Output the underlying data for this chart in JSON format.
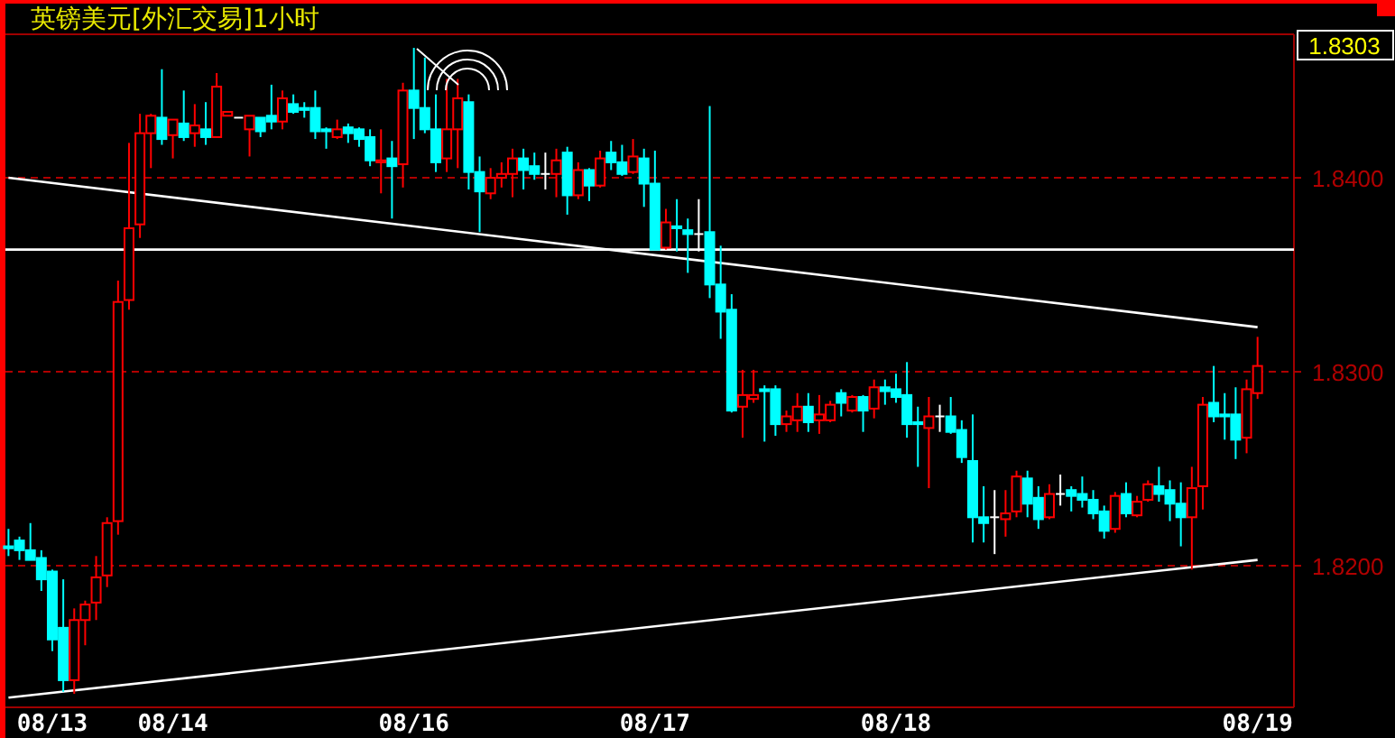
{
  "chart_data": {
    "type": "candlestick",
    "title": "英镑美元[外汇交易]1小时",
    "categories": [
      null,
      null,
      null,
      null,
      "08/13",
      null,
      null,
      null,
      null,
      null,
      null,
      null,
      null,
      null,
      null,
      "08/14",
      null,
      null,
      null,
      null,
      null,
      null,
      null,
      null,
      null,
      null,
      null,
      null,
      null,
      null,
      null,
      null,
      null,
      null,
      null,
      null,
      null,
      "08/16",
      null,
      null,
      null,
      null,
      null,
      null,
      null,
      null,
      null,
      null,
      null,
      null,
      null,
      null,
      null,
      null,
      null,
      null,
      null,
      null,
      null,
      "08/17",
      null,
      null,
      null,
      null,
      null,
      null,
      null,
      null,
      null,
      null,
      null,
      null,
      null,
      null,
      null,
      null,
      null,
      null,
      null,
      null,
      null,
      "08/18",
      null,
      null,
      null,
      null,
      null,
      null,
      null,
      null,
      null,
      null,
      null,
      null,
      null,
      null,
      null,
      null,
      null,
      null,
      null,
      null,
      null,
      null,
      null,
      null,
      null,
      null,
      null,
      null,
      null,
      null,
      null,
      null,
      "08/19"
    ],
    "ohlc": [
      [
        1.821,
        1.8219,
        1.8205,
        1.8209
      ],
      [
        1.8213,
        1.8215,
        1.8203,
        1.8208
      ],
      [
        1.8208,
        1.8222,
        1.8203,
        1.8203
      ],
      [
        1.8204,
        1.8208,
        1.8187,
        1.8193
      ],
      [
        1.8197,
        1.8198,
        1.8156,
        1.8162
      ],
      [
        1.8168,
        1.8193,
        1.8135,
        1.8141
      ],
      [
        1.8141,
        1.8178,
        1.8134,
        1.8172
      ],
      [
        1.8172,
        1.8182,
        1.8159,
        1.818
      ],
      [
        1.8181,
        1.8205,
        1.8172,
        1.8194
      ],
      [
        1.8195,
        1.8225,
        1.8189,
        1.8222
      ],
      [
        1.8223,
        1.8347,
        1.8216,
        1.8336
      ],
      [
        1.8337,
        1.8418,
        1.8332,
        1.8374
      ],
      [
        1.8376,
        1.8433,
        1.8369,
        1.8423
      ],
      [
        1.8423,
        1.8433,
        1.8405,
        1.8432
      ],
      [
        1.8431,
        1.8456,
        1.8417,
        1.842
      ],
      [
        1.8422,
        1.843,
        1.841,
        1.843
      ],
      [
        1.8428,
        1.8445,
        1.8419,
        1.8421
      ],
      [
        1.8423,
        1.8438,
        1.8416,
        1.8427
      ],
      [
        1.8425,
        1.8439,
        1.8417,
        1.8421
      ],
      [
        1.8421,
        1.8454,
        1.8421,
        1.8447
      ],
      [
        1.8432,
        1.8434,
        1.8432,
        1.8434
      ],
      [
        1.8431,
        1.8431,
        1.8431,
        1.8431
      ],
      [
        1.8425,
        1.8432,
        1.8411,
        1.8432
      ],
      [
        1.8431,
        1.8431,
        1.8421,
        1.8424
      ],
      [
        1.8432,
        1.8448,
        1.8425,
        1.8429
      ],
      [
        1.8429,
        1.8445,
        1.8425,
        1.8441
      ],
      [
        1.8438,
        1.8443,
        1.8433,
        1.8434
      ],
      [
        1.8436,
        1.8439,
        1.8431,
        1.8435
      ],
      [
        1.8436,
        1.8445,
        1.842,
        1.8424
      ],
      [
        1.8425,
        1.8426,
        1.8415,
        1.8424
      ],
      [
        1.8421,
        1.843,
        1.842,
        1.8425
      ],
      [
        1.8426,
        1.8428,
        1.8418,
        1.8423
      ],
      [
        1.8425,
        1.8426,
        1.8416,
        1.842
      ],
      [
        1.8421,
        1.8425,
        1.8406,
        1.8409
      ],
      [
        1.8408,
        1.8425,
        1.8392,
        1.8409
      ],
      [
        1.841,
        1.8419,
        1.8379,
        1.8406
      ],
      [
        1.8407,
        1.8449,
        1.8395,
        1.8445
      ],
      [
        1.8445,
        1.8467,
        1.842,
        1.8436
      ],
      [
        1.8436,
        1.8462,
        1.8423,
        1.8425
      ],
      [
        1.8425,
        1.8443,
        1.8403,
        1.8408
      ],
      [
        1.841,
        1.8451,
        1.8403,
        1.8425
      ],
      [
        1.8425,
        1.8451,
        1.8405,
        1.8441
      ],
      [
        1.8439,
        1.8443,
        1.8394,
        1.8403
      ],
      [
        1.8403,
        1.8411,
        1.8372,
        1.8393
      ],
      [
        1.8392,
        1.8405,
        1.8389,
        1.84
      ],
      [
        1.84,
        1.8408,
        1.8395,
        1.8402
      ],
      [
        1.8402,
        1.8415,
        1.839,
        1.841
      ],
      [
        1.841,
        1.8415,
        1.8394,
        1.8404
      ],
      [
        1.8406,
        1.8413,
        1.8399,
        1.8402
      ],
      [
        1.8402,
        1.8413,
        1.8394,
        1.8402
      ],
      [
        1.8402,
        1.8415,
        1.839,
        1.8409
      ],
      [
        1.8413,
        1.8416,
        1.8381,
        1.8391
      ],
      [
        1.8391,
        1.8408,
        1.8389,
        1.8404
      ],
      [
        1.8404,
        1.8405,
        1.8388,
        1.8396
      ],
      [
        1.8396,
        1.8414,
        1.8395,
        1.841
      ],
      [
        1.8413,
        1.8419,
        1.8404,
        1.8408
      ],
      [
        1.8408,
        1.8417,
        1.8401,
        1.8402
      ],
      [
        1.8403,
        1.842,
        1.8402,
        1.8411
      ],
      [
        1.841,
        1.8415,
        1.8385,
        1.8397
      ],
      [
        1.8397,
        1.8414,
        1.8363,
        1.8363
      ],
      [
        1.8364,
        1.8384,
        1.8363,
        1.8377
      ],
      [
        1.8375,
        1.8389,
        1.8362,
        1.8374
      ],
      [
        1.8373,
        1.8379,
        1.8351,
        1.8371
      ],
      [
        1.8371,
        1.8389,
        1.8362,
        1.8371
      ],
      [
        1.8372,
        1.8437,
        1.8338,
        1.8345
      ],
      [
        1.8345,
        1.8365,
        1.8317,
        1.8331
      ],
      [
        1.8332,
        1.834,
        1.8279,
        1.828
      ],
      [
        1.8282,
        1.8301,
        1.8266,
        1.8288
      ],
      [
        1.8286,
        1.8301,
        1.8284,
        1.8288
      ],
      [
        1.8291,
        1.8293,
        1.8264,
        1.829
      ],
      [
        1.8291,
        1.8293,
        1.8267,
        1.8273
      ],
      [
        1.8273,
        1.828,
        1.8269,
        1.8277
      ],
      [
        1.8275,
        1.8289,
        1.8269,
        1.8282
      ],
      [
        1.8282,
        1.8289,
        1.8269,
        1.8274
      ],
      [
        1.8275,
        1.8288,
        1.8268,
        1.8278
      ],
      [
        1.8275,
        1.8285,
        1.8274,
        1.8283
      ],
      [
        1.8289,
        1.8291,
        1.8277,
        1.8284
      ],
      [
        1.828,
        1.8288,
        1.8279,
        1.8287
      ],
      [
        1.8287,
        1.8288,
        1.8269,
        1.828
      ],
      [
        1.8281,
        1.8296,
        1.8276,
        1.8292
      ],
      [
        1.8292,
        1.8296,
        1.8283,
        1.829
      ],
      [
        1.8291,
        1.8299,
        1.8284,
        1.8287
      ],
      [
        1.8288,
        1.8305,
        1.8266,
        1.8273
      ],
      [
        1.8274,
        1.8282,
        1.8251,
        1.8273
      ],
      [
        1.8271,
        1.8287,
        1.824,
        1.8277
      ],
      [
        1.8277,
        1.8283,
        1.8269,
        1.8277
      ],
      [
        1.8277,
        1.8287,
        1.8268,
        1.8269
      ],
      [
        1.827,
        1.8275,
        1.8253,
        1.8256
      ],
      [
        1.8254,
        1.8278,
        1.8212,
        1.8225
      ],
      [
        1.8225,
        1.8241,
        1.8212,
        1.8222
      ],
      [
        1.8225,
        1.8239,
        1.8206,
        1.8225
      ],
      [
        1.8224,
        1.8239,
        1.8215,
        1.8227
      ],
      [
        1.8228,
        1.8249,
        1.8225,
        1.8246
      ],
      [
        1.8245,
        1.8249,
        1.8225,
        1.8232
      ],
      [
        1.8235,
        1.8241,
        1.8219,
        1.8224
      ],
      [
        1.8225,
        1.8242,
        1.8224,
        1.8237
      ],
      [
        1.8237,
        1.8247,
        1.8231,
        1.8237
      ],
      [
        1.8239,
        1.8241,
        1.8228,
        1.8236
      ],
      [
        1.8237,
        1.8246,
        1.823,
        1.8234
      ],
      [
        1.8234,
        1.8239,
        1.8224,
        1.8227
      ],
      [
        1.8228,
        1.8231,
        1.8214,
        1.8218
      ],
      [
        1.8219,
        1.8238,
        1.8217,
        1.8236
      ],
      [
        1.8237,
        1.8243,
        1.8225,
        1.8227
      ],
      [
        1.8226,
        1.8236,
        1.8225,
        1.8233
      ],
      [
        1.8234,
        1.8244,
        1.8233,
        1.8242
      ],
      [
        1.8241,
        1.8251,
        1.8233,
        1.8237
      ],
      [
        1.8239,
        1.8244,
        1.8223,
        1.8232
      ],
      [
        1.8232,
        1.8243,
        1.821,
        1.8225
      ],
      [
        1.8225,
        1.8251,
        1.8198,
        1.824
      ],
      [
        1.8241,
        1.8287,
        1.8229,
        1.8283
      ],
      [
        1.8284,
        1.8303,
        1.8274,
        1.8277
      ],
      [
        1.8278,
        1.8289,
        1.8265,
        1.8277
      ],
      [
        1.8278,
        1.8292,
        1.8255,
        1.8265
      ],
      [
        1.8266,
        1.8296,
        1.8258,
        1.8291
      ],
      [
        1.8289,
        1.8318,
        1.8286,
        1.8303
      ]
    ],
    "colors": [
      "#00ffff",
      "#00ffff",
      "#00ffff",
      "#00ffff",
      "#00ffff",
      "#00ffff",
      "#ff0000",
      "#ff0000",
      "#ff0000",
      "#ff0000",
      "#ff0000",
      "#ff0000",
      "#ff0000",
      "#ff0000",
      "#00ffff",
      "#ff0000",
      "#00ffff",
      "#ff0000",
      "#00ffff",
      "#ff0000",
      "#ff0000",
      "#ffffff",
      "#ff0000",
      "#00ffff",
      "#00ffff",
      "#ff0000",
      "#00ffff",
      "#00ffff",
      "#00ffff",
      "#00ffff",
      "#ff0000",
      "#00ffff",
      "#00ffff",
      "#00ffff",
      "#ff0000",
      "#00ffff",
      "#ff0000",
      "#00ffff",
      "#00ffff",
      "#00ffff",
      "#ff0000",
      "#ff0000",
      "#00ffff",
      "#00ffff",
      "#ff0000",
      "#ff0000",
      "#ff0000",
      "#00ffff",
      "#00ffff",
      "#ffffff",
      "#ff0000",
      "#00ffff",
      "#ff0000",
      "#00ffff",
      "#ff0000",
      "#00ffff",
      "#00ffff",
      "#ff0000",
      "#00ffff",
      "#00ffff",
      "#ff0000",
      "#00ffff",
      "#00ffff",
      "#ffffff",
      "#00ffff",
      "#00ffff",
      "#00ffff",
      "#ff0000",
      "#ff0000",
      "#00ffff",
      "#00ffff",
      "#ff0000",
      "#ff0000",
      "#00ffff",
      "#ff0000",
      "#ff0000",
      "#00ffff",
      "#ff0000",
      "#00ffff",
      "#ff0000",
      "#00ffff",
      "#00ffff",
      "#00ffff",
      "#00ffff",
      "#ff0000",
      "#ffffff",
      "#00ffff",
      "#00ffff",
      "#00ffff",
      "#00ffff",
      "#ffffff",
      "#ff0000",
      "#ff0000",
      "#00ffff",
      "#00ffff",
      "#ff0000",
      "#ffffff",
      "#00ffff",
      "#00ffff",
      "#00ffff",
      "#00ffff",
      "#ff0000",
      "#00ffff",
      "#ff0000",
      "#ff0000",
      "#00ffff",
      "#00ffff",
      "#00ffff",
      "#ff0000",
      "#ff0000",
      "#00ffff",
      "#00ffff",
      "#00ffff",
      "#ff0000",
      "#ff0000"
    ],
    "series": [
      {
        "type": "line",
        "color": "#ffffff",
        "values": [
          1.84,
          null,
          null,
          null,
          null,
          null,
          null,
          null,
          null,
          null,
          null,
          null,
          null,
          null,
          null,
          null,
          null,
          null,
          null,
          null,
          null,
          null,
          null,
          null,
          null,
          null,
          null,
          null,
          null,
          null,
          null,
          null,
          null,
          null,
          null,
          null,
          null,
          null,
          null,
          null,
          null,
          null,
          null,
          null,
          null,
          null,
          null,
          null,
          null,
          null,
          null,
          null,
          null,
          null,
          null,
          null,
          null,
          null,
          null,
          null,
          null,
          null,
          null,
          null,
          null,
          null,
          null,
          null,
          null,
          null,
          null,
          null,
          null,
          null,
          null,
          null,
          null,
          null,
          null,
          null,
          null,
          null,
          null,
          null,
          null,
          null,
          null,
          null,
          null,
          null,
          null,
          null,
          null,
          null,
          null,
          null,
          null,
          null,
          null,
          null,
          null,
          null,
          null,
          null,
          null,
          null,
          null,
          null,
          null,
          null,
          null,
          null,
          null,
          null,
          1.8323
        ]
      },
      {
        "type": "line",
        "color": "#ffffff",
        "values": [
          1.8132,
          null,
          null,
          null,
          null,
          null,
          null,
          null,
          null,
          null,
          null,
          null,
          null,
          null,
          null,
          null,
          null,
          null,
          null,
          null,
          null,
          null,
          null,
          null,
          null,
          null,
          null,
          null,
          null,
          null,
          null,
          null,
          null,
          null,
          null,
          null,
          null,
          null,
          null,
          null,
          null,
          null,
          null,
          null,
          null,
          null,
          null,
          null,
          null,
          null,
          null,
          null,
          null,
          null,
          null,
          null,
          null,
          null,
          null,
          null,
          null,
          null,
          null,
          null,
          null,
          null,
          null,
          null,
          null,
          null,
          null,
          null,
          null,
          null,
          null,
          null,
          null,
          null,
          null,
          null,
          null,
          null,
          null,
          null,
          null,
          null,
          null,
          null,
          null,
          null,
          null,
          null,
          null,
          null,
          null,
          null,
          null,
          null,
          null,
          null,
          null,
          null,
          null,
          null,
          null,
          null,
          null,
          null,
          null,
          null,
          null,
          null,
          null,
          null,
          1.8203
        ]
      }
    ],
    "ylim": [
      1.8127,
      1.8474
    ],
    "yticks": [
      {
        "value": 1.82,
        "label": "1.8200"
      },
      {
        "value": 1.83,
        "label": "1.8300"
      },
      {
        "value": 1.84,
        "label": "1.8400"
      }
    ],
    "grid": "y",
    "ref_lines": [
      {
        "axis": "y",
        "value": 1.8363,
        "color": "#ffffff"
      }
    ],
    "annotations": [
      "1.8303"
    ]
  }
}
